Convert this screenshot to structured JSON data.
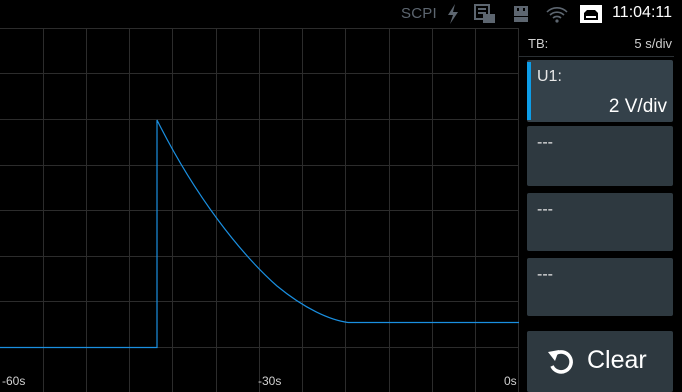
{
  "status_bar": {
    "scpi_label": "SCPI",
    "clock": "11:04:11",
    "icons": [
      "lightning-icon",
      "logger-icon",
      "usb-drive-icon",
      "wifi-icon",
      "ethernet-icon"
    ],
    "colors": {
      "inactive": "#5d6670",
      "active": "#ffffff"
    }
  },
  "plot": {
    "x_ticks": [
      "-60s",
      "-30s",
      "0s"
    ],
    "trace_color": "#1a8fe0",
    "grid_color": "#2c2c2c"
  },
  "side_panel": {
    "timebase": {
      "label": "TB:",
      "value": "5 s/div"
    },
    "channels": [
      {
        "name": "U1:",
        "scale": "2 V/div",
        "active": true,
        "accent_color": "#0d9de8"
      },
      {
        "name": "---"
      },
      {
        "name": "---"
      },
      {
        "name": "---"
      }
    ],
    "clear_button": {
      "label": "Clear",
      "icon": "undo-arrow-icon"
    }
  }
}
